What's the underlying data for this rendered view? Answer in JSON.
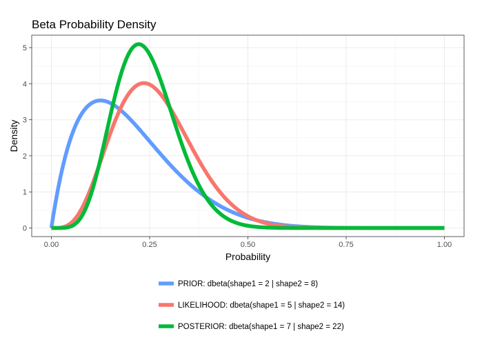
{
  "chart_data": {
    "type": "line",
    "title": "Beta Probability Density",
    "xlabel": "Probability",
    "ylabel": "Density",
    "xlim": [
      0,
      1
    ],
    "ylim": [
      0,
      5.2
    ],
    "x_ticks": [
      "0.00",
      "0.25",
      "0.50",
      "0.75",
      "1.00"
    ],
    "y_ticks": [
      "0",
      "1",
      "2",
      "3",
      "4",
      "5"
    ],
    "grid": true,
    "legend_position": "bottom",
    "series": [
      {
        "name": "PRIOR: dbeta(shape1 = 2 | shape2 = 8)",
        "shape1": 2,
        "shape2": 8,
        "color": "#619cff",
        "x": [
          0,
          0.025,
          0.05,
          0.075,
          0.1,
          0.125,
          0.15,
          0.175,
          0.2,
          0.25,
          0.3,
          0.35,
          0.4,
          0.45,
          0.5,
          0.55,
          0.6,
          0.7,
          0.8,
          0.9,
          1.0
        ],
        "values": [
          0,
          1.48,
          2.39,
          3.0,
          3.44,
          3.52,
          3.5,
          3.38,
          3.02,
          2.5,
          1.98,
          1.45,
          1.03,
          0.69,
          0.44,
          0.26,
          0.12,
          0.03,
          0.01,
          0.0,
          0
        ]
      },
      {
        "name": "LIKELIHOOD: dbeta(shape1 = 5 | shape2 = 14)",
        "shape1": 5,
        "shape2": 14,
        "color": "#f8766d",
        "x": [
          0,
          0.05,
          0.1,
          0.15,
          0.2,
          0.225,
          0.25,
          0.3,
          0.35,
          0.4,
          0.45,
          0.5,
          0.55,
          0.6,
          0.7,
          0.8,
          0.9,
          1.0
        ],
        "values": [
          0,
          0.08,
          0.92,
          2.4,
          3.67,
          3.95,
          3.97,
          3.42,
          2.39,
          1.45,
          0.74,
          0.32,
          0.12,
          0.04,
          0.0,
          0.0,
          0.0,
          0
        ]
      },
      {
        "name": "POSTERIOR: dbeta(shape1 = 7 | shape2 = 22)",
        "shape1": 7,
        "shape2": 22,
        "color": "#00ba38",
        "x": [
          0,
          0.05,
          0.1,
          0.125,
          0.15,
          0.175,
          0.2,
          0.22,
          0.25,
          0.3,
          0.35,
          0.4,
          0.45,
          0.5,
          0.55,
          0.6,
          0.7,
          0.8,
          0.9,
          1.0
        ],
        "values": [
          0,
          0.05,
          0.67,
          1.5,
          2.53,
          3.88,
          4.81,
          5.1,
          4.79,
          3.36,
          1.71,
          0.69,
          0.22,
          0.05,
          0.01,
          0.0,
          0.0,
          0.0,
          0.0,
          0
        ]
      }
    ]
  }
}
